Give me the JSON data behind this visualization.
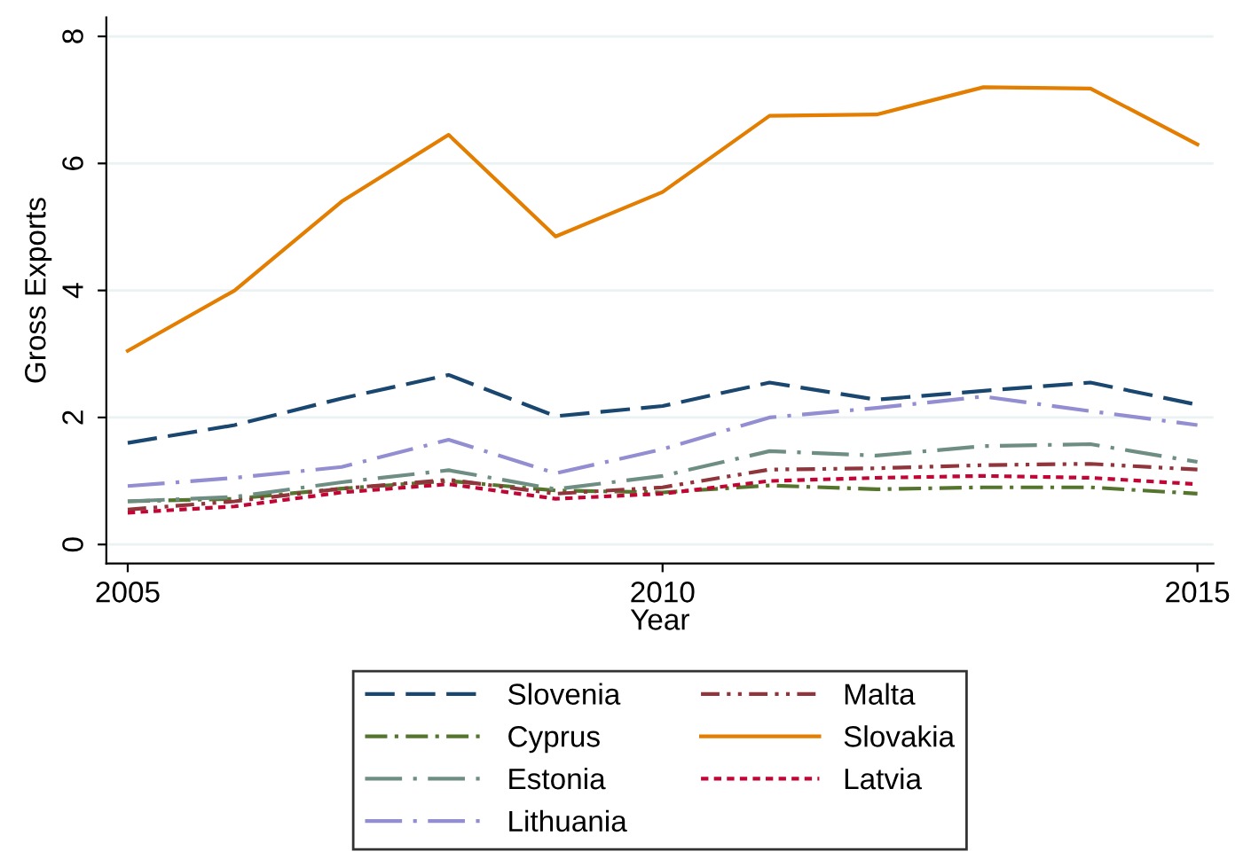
{
  "chart_data": {
    "type": "line",
    "xlabel": "Year",
    "ylabel": "Gross Exports",
    "x": [
      2005,
      2006,
      2007,
      2008,
      2009,
      2010,
      2011,
      2012,
      2013,
      2014,
      2015
    ],
    "xlim": [
      2004.8,
      2015.15
    ],
    "xticks": [
      2005,
      2010,
      2015
    ],
    "ylim": [
      -0.3,
      8.3
    ],
    "yticks": [
      0,
      2,
      4,
      6,
      8
    ],
    "grid": "y",
    "legend": "bottom",
    "marker": "none",
    "series": [
      {
        "name": "Slovenia",
        "color": "#1a476f",
        "line_style": "longdash",
        "values": [
          1.6,
          1.88,
          2.3,
          2.67,
          2.02,
          2.18,
          2.55,
          2.28,
          2.42,
          2.55,
          2.2
        ]
      },
      {
        "name": "Cyprus",
        "color": "#55752f",
        "line_style": "dashdot",
        "values": [
          0.68,
          0.72,
          0.88,
          1.0,
          0.85,
          0.82,
          0.93,
          0.87,
          0.9,
          0.9,
          0.8
        ]
      },
      {
        "name": "Estonia",
        "color": "#6e8e84",
        "line_style": "longdashdot",
        "values": [
          0.68,
          0.75,
          0.98,
          1.17,
          0.87,
          1.08,
          1.47,
          1.4,
          1.55,
          1.58,
          1.3
        ]
      },
      {
        "name": "Lithuania",
        "color": "#938dd2",
        "line_style": "longdashdot",
        "values": [
          0.92,
          1.05,
          1.22,
          1.65,
          1.12,
          1.5,
          2.0,
          2.15,
          2.33,
          2.1,
          1.88
        ]
      },
      {
        "name": "Malta",
        "color": "#90353b",
        "line_style": "dashdotdot",
        "values": [
          0.55,
          0.68,
          0.88,
          1.02,
          0.8,
          0.9,
          1.18,
          1.2,
          1.25,
          1.27,
          1.18
        ]
      },
      {
        "name": "Slovakia",
        "color": "#e37e00",
        "line_style": "solid",
        "values": [
          3.05,
          4.0,
          5.4,
          6.45,
          4.85,
          5.55,
          6.75,
          6.77,
          7.2,
          7.18,
          6.3
        ]
      },
      {
        "name": "Latvia",
        "color": "#c10534",
        "line_style": "dotted",
        "values": [
          0.5,
          0.6,
          0.82,
          0.95,
          0.72,
          0.8,
          1.0,
          1.05,
          1.08,
          1.05,
          0.95
        ]
      }
    ]
  }
}
